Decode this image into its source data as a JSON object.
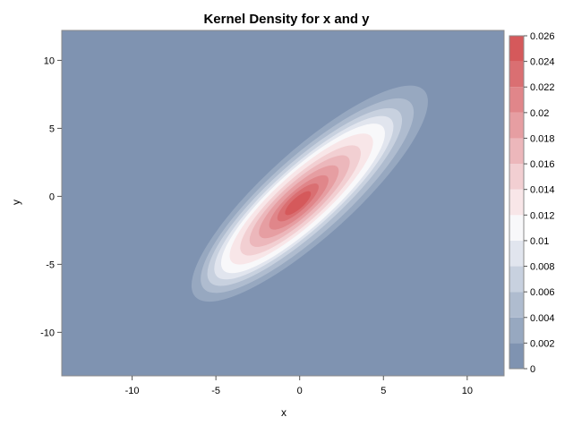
{
  "chart_data": {
    "type": "heatmap",
    "title": "Kernel Density for x and y",
    "xlabel": "x",
    "ylabel": "y",
    "xlim": [
      -14.2,
      12.2
    ],
    "ylim": [
      -13.2,
      12.2
    ],
    "x_ticks": [
      -10,
      -5,
      0,
      5,
      10
    ],
    "y_ticks": [
      -10,
      -5,
      0,
      5,
      10
    ],
    "grid": false,
    "colorbar": {
      "position": "right",
      "range": [
        0,
        0.026
      ],
      "tick_values": [
        0,
        0.002,
        0.004,
        0.006,
        0.008,
        0.01,
        0.012,
        0.014,
        0.016,
        0.018,
        0.02,
        0.022,
        0.024,
        0.026
      ],
      "tick_labels": [
        "0",
        "0.002",
        "0.004",
        "0.006",
        "0.008",
        "0.01",
        "0.012",
        "0.014",
        "0.016",
        "0.018",
        "0.02",
        "0.022",
        "0.024",
        "0.026"
      ],
      "levels": [
        {
          "from": 0,
          "to": 0.002,
          "color": "#7f93b1"
        },
        {
          "from": 0.002,
          "to": 0.004,
          "color": "#97a8c0"
        },
        {
          "from": 0.004,
          "to": 0.006,
          "color": "#afbccf"
        },
        {
          "from": 0.006,
          "to": 0.008,
          "color": "#c8d1df"
        },
        {
          "from": 0.008,
          "to": 0.01,
          "color": "#e1e5ee"
        },
        {
          "from": 0.01,
          "to": 0.012,
          "color": "#f8f8fa"
        },
        {
          "from": 0.012,
          "to": 0.014,
          "color": "#f8e6e8"
        },
        {
          "from": 0.014,
          "to": 0.016,
          "color": "#f2cfd2"
        },
        {
          "from": 0.016,
          "to": 0.018,
          "color": "#ecb7bb"
        },
        {
          "from": 0.018,
          "to": 0.02,
          "color": "#e69ea2"
        },
        {
          "from": 0.02,
          "to": 0.022,
          "color": "#e0868a"
        },
        {
          "from": 0.022,
          "to": 0.024,
          "color": "#da6f72"
        },
        {
          "from": 0.024,
          "to": 0.026,
          "color": "#d5595b"
        }
      ]
    },
    "density_contours": [
      {
        "level": 0.002,
        "center": [
          0.6,
          0.2
        ],
        "semi_major": 9.2,
        "semi_minor": 2.6,
        "angle_deg": 42
      },
      {
        "level": 0.004,
        "center": [
          0.45,
          0.05
        ],
        "semi_major": 8.3,
        "semi_minor": 2.3,
        "angle_deg": 42
      },
      {
        "level": 0.006,
        "center": [
          0.3,
          -0.05
        ],
        "semi_major": 7.6,
        "semi_minor": 2.05,
        "angle_deg": 42
      },
      {
        "level": 0.008,
        "center": [
          0.25,
          -0.1
        ],
        "semi_major": 7.0,
        "semi_minor": 1.85,
        "angle_deg": 42
      },
      {
        "level": 0.01,
        "center": [
          0.2,
          -0.15
        ],
        "semi_major": 6.4,
        "semi_minor": 1.7,
        "angle_deg": 42
      },
      {
        "level": 0.012,
        "center": [
          0.1,
          -0.2
        ],
        "semi_major": 5.6,
        "semi_minor": 1.5,
        "angle_deg": 42
      },
      {
        "level": 0.014,
        "center": [
          0.05,
          -0.3
        ],
        "semi_major": 4.7,
        "semi_minor": 1.3,
        "angle_deg": 42
      },
      {
        "level": 0.016,
        "center": [
          0.0,
          -0.35
        ],
        "semi_major": 3.9,
        "semi_minor": 1.1,
        "angle_deg": 42
      },
      {
        "level": 0.018,
        "center": [
          -0.05,
          -0.4
        ],
        "semi_major": 3.1,
        "semi_minor": 0.9,
        "angle_deg": 42
      },
      {
        "level": 0.02,
        "center": [
          -0.05,
          -0.45
        ],
        "semi_major": 2.3,
        "semi_minor": 0.7,
        "angle_deg": 42
      },
      {
        "level": 0.022,
        "center": [
          -0.1,
          -0.45
        ],
        "semi_major": 1.6,
        "semi_minor": 0.5,
        "angle_deg": 42
      },
      {
        "level": 0.024,
        "center": [
          -0.1,
          -0.5
        ],
        "semi_major": 1.0,
        "semi_minor": 0.33,
        "angle_deg": 42
      }
    ]
  }
}
